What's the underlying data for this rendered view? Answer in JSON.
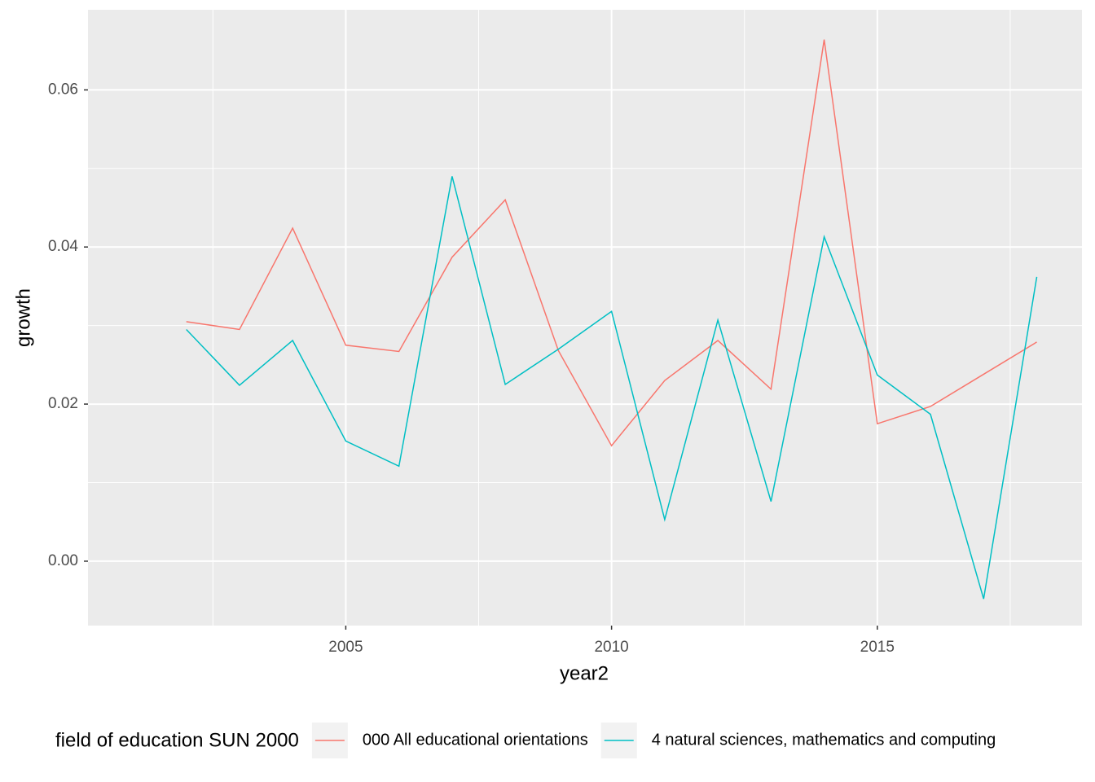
{
  "chart_data": {
    "type": "line",
    "x_label": "year2",
    "y_label": "growth",
    "legend_title": "field of education SUN 2000",
    "legend_position": "bottom",
    "x": [
      2002,
      2003,
      2004,
      2005,
      2006,
      2007,
      2008,
      2009,
      2010,
      2011,
      2012,
      2013,
      2014,
      2015,
      2016,
      2017,
      2018
    ],
    "series": [
      {
        "name": "000 All educational orientations",
        "color": "#f8766d",
        "values": [
          0.0305,
          0.0295,
          0.0424,
          0.0275,
          0.0267,
          0.0387,
          0.046,
          0.0268,
          0.0147,
          0.023,
          0.0281,
          0.0219,
          0.0664,
          0.0175,
          0.0197,
          0.0238,
          0.0279
        ]
      },
      {
        "name": "4 natural sciences, mathematics and computing",
        "color": "#00bfc4",
        "values": [
          0.0295,
          0.0224,
          0.0281,
          0.0153,
          0.0121,
          0.049,
          0.0225,
          0.027,
          0.0318,
          0.0053,
          0.0307,
          0.0076,
          0.0413,
          0.0237,
          0.0187,
          -0.0048,
          0.0362
        ]
      }
    ],
    "xlim": [
      2000.15,
      2018.85
    ],
    "xticks": [
      2005,
      2010,
      2015
    ],
    "xminor": [
      2002.5,
      2007.5,
      2012.5,
      2017.5
    ],
    "ylim": [
      -0.0082,
      0.0702
    ],
    "yticks": [
      {
        "value": 0,
        "label": "0.00"
      },
      {
        "value": 0.02,
        "label": "0.02"
      },
      {
        "value": 0.04,
        "label": "0.04"
      },
      {
        "value": 0.06,
        "label": "0.06"
      }
    ],
    "yminor": [
      0.01,
      0.03,
      0.05
    ],
    "grid": true
  }
}
